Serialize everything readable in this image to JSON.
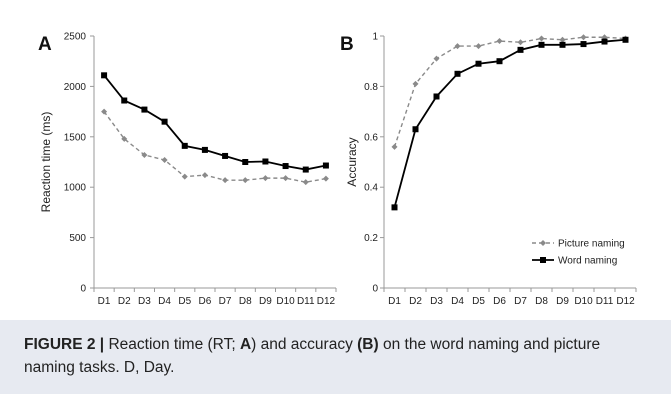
{
  "colors": {
    "word_series": "#000000",
    "picture_series": "#8a8a8a",
    "axis": "#999999",
    "caption_bg": "#e7eaf1"
  },
  "caption": {
    "figure_label": "FIGURE 2 |",
    "text_1": " Reaction time (RT; ",
    "bold_A": "A",
    "text_2": ") and accuracy ",
    "bold_B": "(B)",
    "text_3": " on the word naming and picture naming tasks. D, Day."
  },
  "chart_data": [
    {
      "panel_label": "A",
      "type": "line",
      "categories": [
        "D1",
        "D2",
        "D3",
        "D4",
        "D5",
        "D6",
        "D7",
        "D8",
        "D9",
        "D10",
        "D11",
        "D12"
      ],
      "ylabel": "Reaction time (ms)",
      "ylim": [
        0,
        2500
      ],
      "yticks": [
        0,
        500,
        1000,
        1500,
        2000,
        2500
      ],
      "ytick_labels": [
        "0",
        "500",
        "1000",
        "1500",
        "2000",
        "2500"
      ],
      "grid": false,
      "series": [
        {
          "key": "word",
          "style": "solid-square",
          "values": [
            2110,
            1860,
            1770,
            1650,
            1410,
            1370,
            1310,
            1250,
            1255,
            1210,
            1175,
            1215
          ]
        },
        {
          "key": "picture",
          "style": "dashed-diamond",
          "values": [
            1750,
            1480,
            1320,
            1270,
            1105,
            1120,
            1070,
            1070,
            1090,
            1090,
            1050,
            1085
          ]
        }
      ]
    },
    {
      "panel_label": "B",
      "type": "line",
      "categories": [
        "D1",
        "D2",
        "D3",
        "D4",
        "D5",
        "D6",
        "D7",
        "D8",
        "D9",
        "D10",
        "D11",
        "D12"
      ],
      "ylabel": "Accuracy",
      "ylim": [
        0,
        1
      ],
      "yticks": [
        0,
        0.2,
        0.4,
        0.6,
        0.8,
        1
      ],
      "ytick_labels": [
        "0",
        "0.2",
        "0.4",
        "0.6",
        "0.8",
        "1"
      ],
      "grid": false,
      "legend_position": "bottom-right",
      "series": [
        {
          "key": "picture",
          "name": "Picture naming",
          "style": "dashed-diamond",
          "values": [
            0.56,
            0.81,
            0.91,
            0.96,
            0.96,
            0.98,
            0.975,
            0.99,
            0.985,
            0.995,
            0.995,
            0.99
          ]
        },
        {
          "key": "word",
          "name": "Word naming",
          "style": "solid-square",
          "values": [
            0.32,
            0.63,
            0.76,
            0.85,
            0.89,
            0.9,
            0.945,
            0.965,
            0.965,
            0.968,
            0.978,
            0.985
          ]
        }
      ]
    }
  ]
}
